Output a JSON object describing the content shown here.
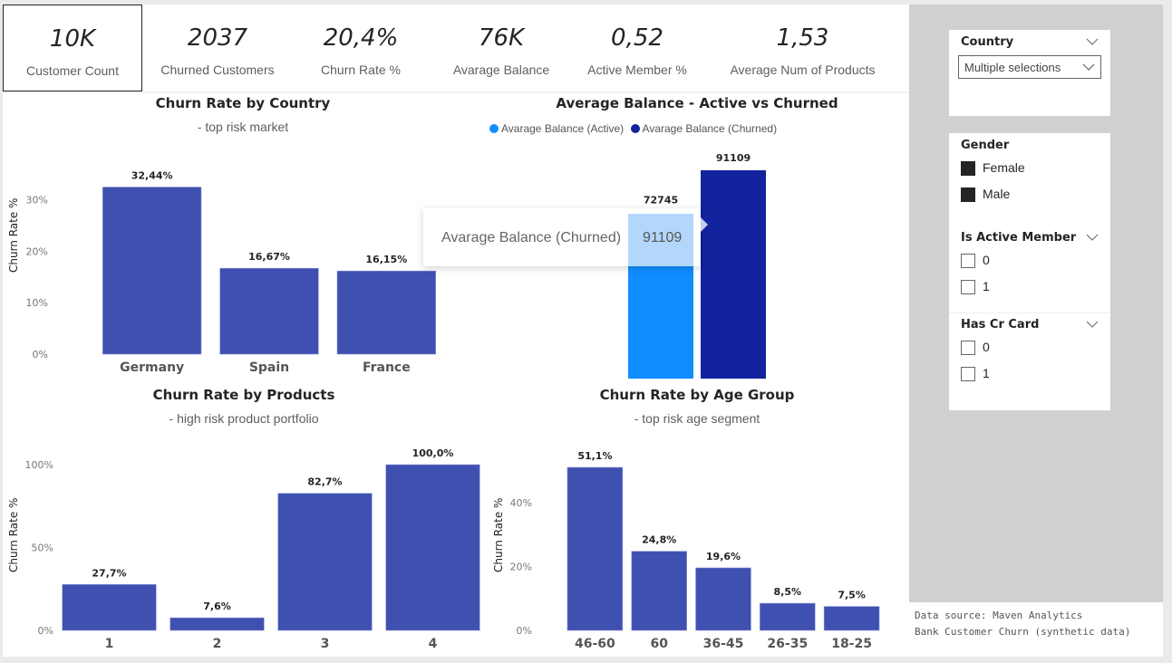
{
  "kpis": [
    {
      "value": "10K",
      "label": "Customer Count",
      "selected": true
    },
    {
      "value": "2037",
      "label": "Churned Customers"
    },
    {
      "value": "20,4%",
      "label": "Churn Rate %"
    },
    {
      "value": "76K",
      "label": "Avarage Balance"
    },
    {
      "value": "0,52",
      "label": "Active Member %"
    },
    {
      "value": "1,53",
      "label": "Average Num of Products"
    }
  ],
  "colors": {
    "bar": "#4050b0",
    "active": "#118dff",
    "churned": "#12239e"
  },
  "slicers": {
    "country": {
      "title": "Country",
      "selected": "Multiple selections"
    },
    "gender": {
      "title": "Gender",
      "options": [
        {
          "label": "Female",
          "checked": true
        },
        {
          "label": "Male",
          "checked": true
        }
      ]
    },
    "active_member": {
      "title": "Is Active Member",
      "options": [
        {
          "label": "0",
          "checked": false
        },
        {
          "label": "1",
          "checked": false
        }
      ]
    },
    "has_cr_card": {
      "title": "Has Cr Card",
      "options": [
        {
          "label": "0",
          "checked": false
        },
        {
          "label": "1",
          "checked": false
        }
      ]
    }
  },
  "source": {
    "line1": "Data source: Maven Analytics",
    "line2": "Bank Customer Churn (synthetic data)"
  },
  "tooltip": {
    "label": "Avarage Balance (Churned)",
    "value": "91109"
  },
  "chart_data": [
    {
      "id": "country",
      "type": "bar",
      "title": "Churn Rate by Country",
      "subtitle": "- top risk market",
      "ylabel": "Churn Rate %",
      "xlabel": "",
      "categories": [
        "Germany",
        "Spain",
        "France"
      ],
      "values": [
        32.44,
        16.67,
        16.15
      ],
      "data_labels": [
        "32,44%",
        "16,67%",
        "16,15%"
      ],
      "yticks": [
        0,
        10,
        20,
        30
      ],
      "ytick_labels": [
        "0%",
        "10%",
        "20%",
        "30%"
      ],
      "ylim": [
        0,
        35
      ],
      "grid": false
    },
    {
      "id": "balance",
      "type": "bar",
      "title": "Average Balance - Active vs Churned",
      "subtitle": "",
      "legend": [
        "Avarage Balance (Active)",
        "Avarage Balance (Churned)"
      ],
      "legend_position": "top-left",
      "series": [
        {
          "name": "Avarage Balance (Active)",
          "values": [
            72745
          ],
          "label": "72745"
        },
        {
          "name": "Avarage Balance (Churned)",
          "values": [
            91109
          ],
          "label": "91109"
        }
      ],
      "ylim": [
        0,
        100000
      ],
      "grid": false
    },
    {
      "id": "products",
      "type": "bar",
      "title": "Churn Rate by Products",
      "subtitle": "- high risk product portfolio",
      "ylabel": "Churn Rate %",
      "xlabel": "",
      "categories": [
        "1",
        "2",
        "3",
        "4"
      ],
      "values": [
        27.7,
        7.6,
        82.7,
        100.0
      ],
      "data_labels": [
        "27,7%",
        "7,6%",
        "82,7%",
        "100,0%"
      ],
      "yticks": [
        0,
        50,
        100
      ],
      "ytick_labels": [
        "0%",
        "50%",
        "100%"
      ],
      "ylim": [
        0,
        100
      ],
      "grid": false
    },
    {
      "id": "age",
      "type": "bar",
      "title": "Churn Rate by Age Group",
      "subtitle": "- top risk age segment",
      "ylabel": "Churn Rate %",
      "xlabel": "",
      "categories": [
        "46-60",
        "60",
        "36-45",
        "26-35",
        "18-25"
      ],
      "values": [
        51.1,
        24.8,
        19.6,
        8.5,
        7.5
      ],
      "data_labels": [
        "51,1%",
        "24,8%",
        "19,6%",
        "8,5%",
        "7,5%"
      ],
      "yticks": [
        0,
        20,
        40
      ],
      "ytick_labels": [
        "0%",
        "20%",
        "40%"
      ],
      "ylim": [
        0,
        51.1
      ],
      "grid": false
    }
  ]
}
